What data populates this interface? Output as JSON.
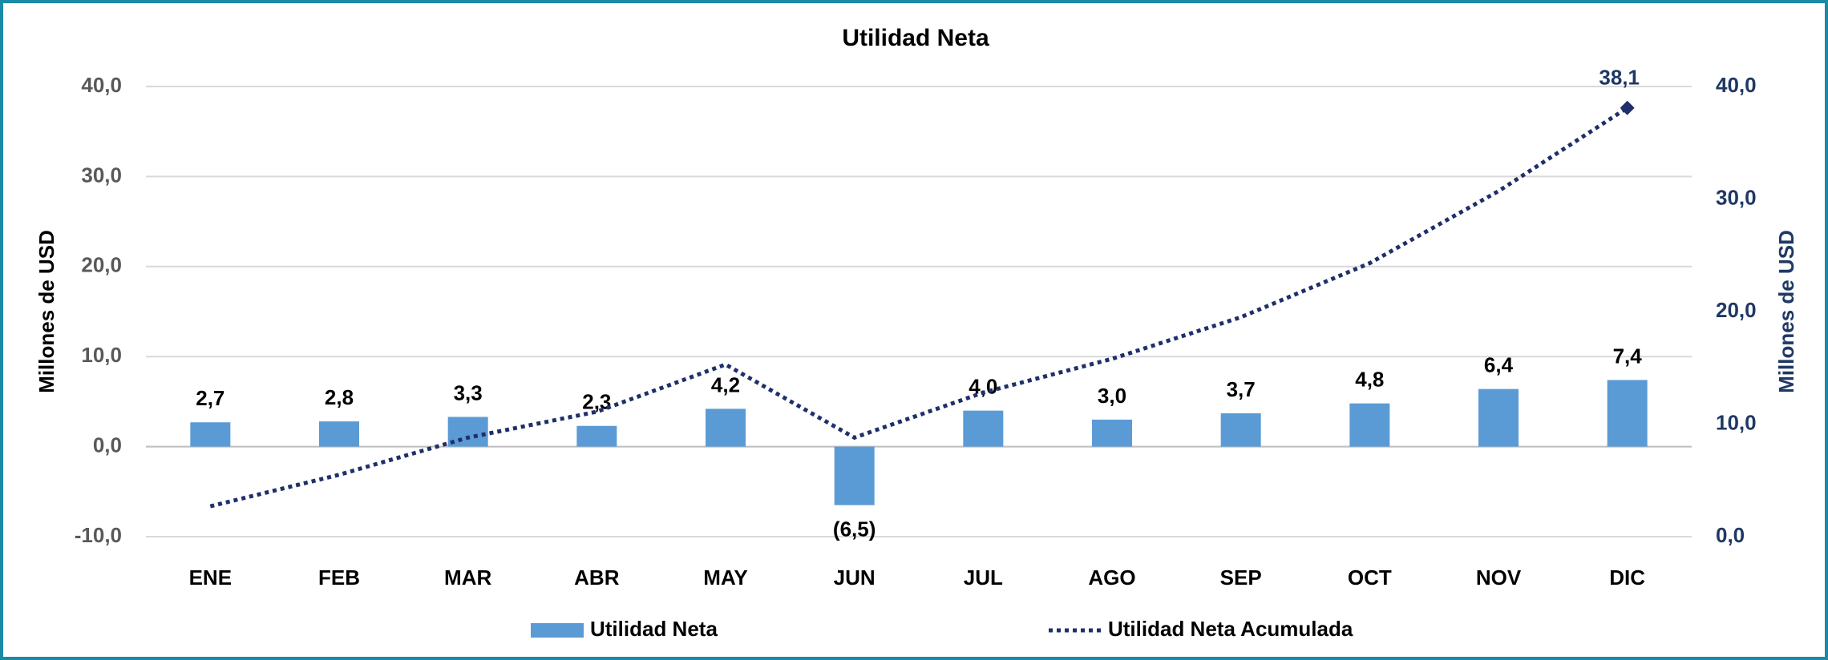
{
  "chart_data": {
    "type": "combo",
    "title": "Utilidad Neta",
    "categories": [
      "ENE",
      "FEB",
      "MAR",
      "ABR",
      "MAY",
      "JUN",
      "JUL",
      "AGO",
      "SEP",
      "OCT",
      "NOV",
      "DIC"
    ],
    "series": [
      {
        "name": "Utilidad Neta",
        "type": "bar",
        "color": "#5b9bd5",
        "values": [
          2.7,
          2.8,
          3.3,
          2.3,
          4.2,
          -6.5,
          4.0,
          3.0,
          3.7,
          4.8,
          6.4,
          7.4
        ],
        "value_labels": [
          "2,7",
          "2,8",
          "3,3",
          "2,3",
          "4,2",
          "(6,5)",
          "4,0",
          "3,0",
          "3,7",
          "4,8",
          "6,4",
          "7,4"
        ]
      },
      {
        "name": "Utilidad Neta Acumulada",
        "type": "line",
        "axis": "y2",
        "color": "#1f2f6b",
        "values": [
          2.7,
          5.5,
          8.8,
          11.1,
          15.3,
          8.8,
          12.8,
          15.8,
          19.5,
          24.3,
          30.7,
          38.1
        ],
        "value_labels": [
          null,
          null,
          null,
          null,
          null,
          null,
          null,
          null,
          null,
          null,
          null,
          "38,1"
        ]
      }
    ],
    "ylabel": "Millones de USD",
    "y2label": "Millones de USD",
    "ylim": [
      -10,
      40
    ],
    "yticks": [
      {
        "value": -10,
        "label": "-10,0"
      },
      {
        "value": 0,
        "label": "0,0"
      },
      {
        "value": 10,
        "label": "10,0"
      },
      {
        "value": 20,
        "label": "20,0"
      },
      {
        "value": 30,
        "label": "30,0"
      },
      {
        "value": 40,
        "label": "40,0"
      }
    ],
    "y2lim": [
      0,
      40
    ],
    "y2ticks": [
      {
        "value": 0,
        "label": "0,0"
      },
      {
        "value": 10,
        "label": "10,0"
      },
      {
        "value": 20,
        "label": "20,0"
      },
      {
        "value": 30,
        "label": "30,0"
      },
      {
        "value": 40,
        "label": "40,0"
      }
    ],
    "grid": true,
    "legend": "bottom"
  }
}
